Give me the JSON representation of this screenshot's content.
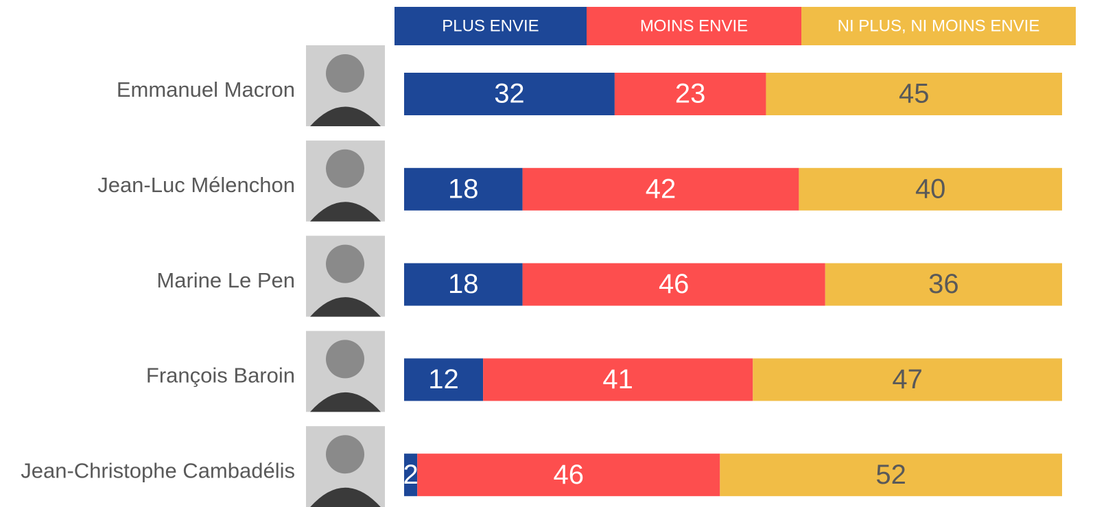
{
  "chart_data": {
    "type": "stacked-bar-horizontal",
    "categories": [
      "Emmanuel Macron",
      "Jean-Luc Mélenchon",
      "Marine Le Pen",
      "François Baroin",
      "Jean-Christophe Cambadélis"
    ],
    "series": [
      {
        "name": "PLUS ENVIE",
        "color": "#1d4797",
        "text_color": "#ffffff",
        "values": [
          32,
          18,
          18,
          12,
          2
        ]
      },
      {
        "name": "MOINS ENVIE",
        "color": "#fd4e4e",
        "text_color": "#ffffff",
        "values": [
          23,
          42,
          46,
          41,
          46
        ]
      },
      {
        "name": "NI PLUS, NI MOINS ENVIE",
        "color": "#f1bd46",
        "text_color": "#595959",
        "values": [
          45,
          40,
          36,
          47,
          52
        ]
      }
    ],
    "xlim": [
      0,
      100
    ]
  }
}
